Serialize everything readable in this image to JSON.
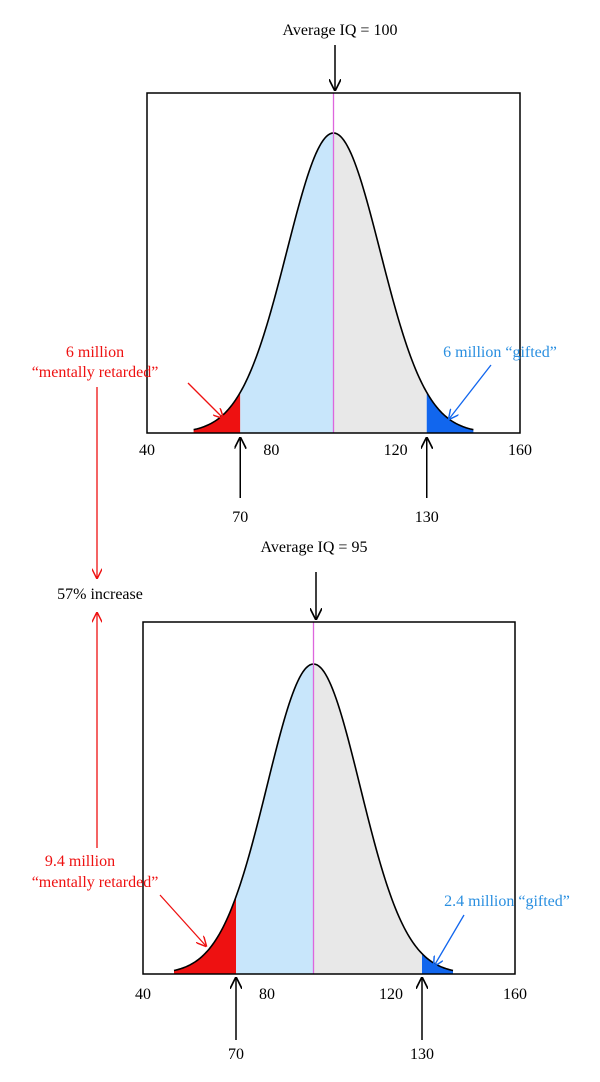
{
  "colors": {
    "red": "#ee1111",
    "blue": "#1166ee",
    "blue_label": "#2a8fe0",
    "light_blue": "#c8e6fb",
    "light_gray": "#e8e8e8",
    "mean_line": "#dd66dd",
    "ink": "#000000"
  },
  "increase_label": "57% increase",
  "chart_data": [
    {
      "type": "area",
      "title": "Average IQ = 100",
      "mean": 100,
      "sd": 15,
      "xlim": [
        40,
        160
      ],
      "x_ticks": [
        "40",
        "80",
        "120",
        "160"
      ],
      "x_tick_values": [
        40,
        80,
        120,
        160
      ],
      "thresholds": [
        {
          "value": 70,
          "label": "70"
        },
        {
          "value": 130,
          "label": "130"
        }
      ],
      "left_tail": {
        "line1": "6 million",
        "line2": "“mentally retarded”"
      },
      "right_tail": {
        "line1": "6 million “gifted”"
      }
    },
    {
      "type": "area",
      "title": "Average IQ = 95",
      "mean": 95,
      "sd": 15,
      "xlim": [
        40,
        160
      ],
      "x_ticks": [
        "40",
        "80",
        "120",
        "160"
      ],
      "x_tick_values": [
        40,
        80,
        120,
        160
      ],
      "thresholds": [
        {
          "value": 70,
          "label": "70"
        },
        {
          "value": 130,
          "label": "130"
        }
      ],
      "left_tail": {
        "line1": "9.4 million",
        "line2": "“mentally retarded”"
      },
      "right_tail": {
        "line1": "2.4 million “gifted”"
      }
    }
  ]
}
